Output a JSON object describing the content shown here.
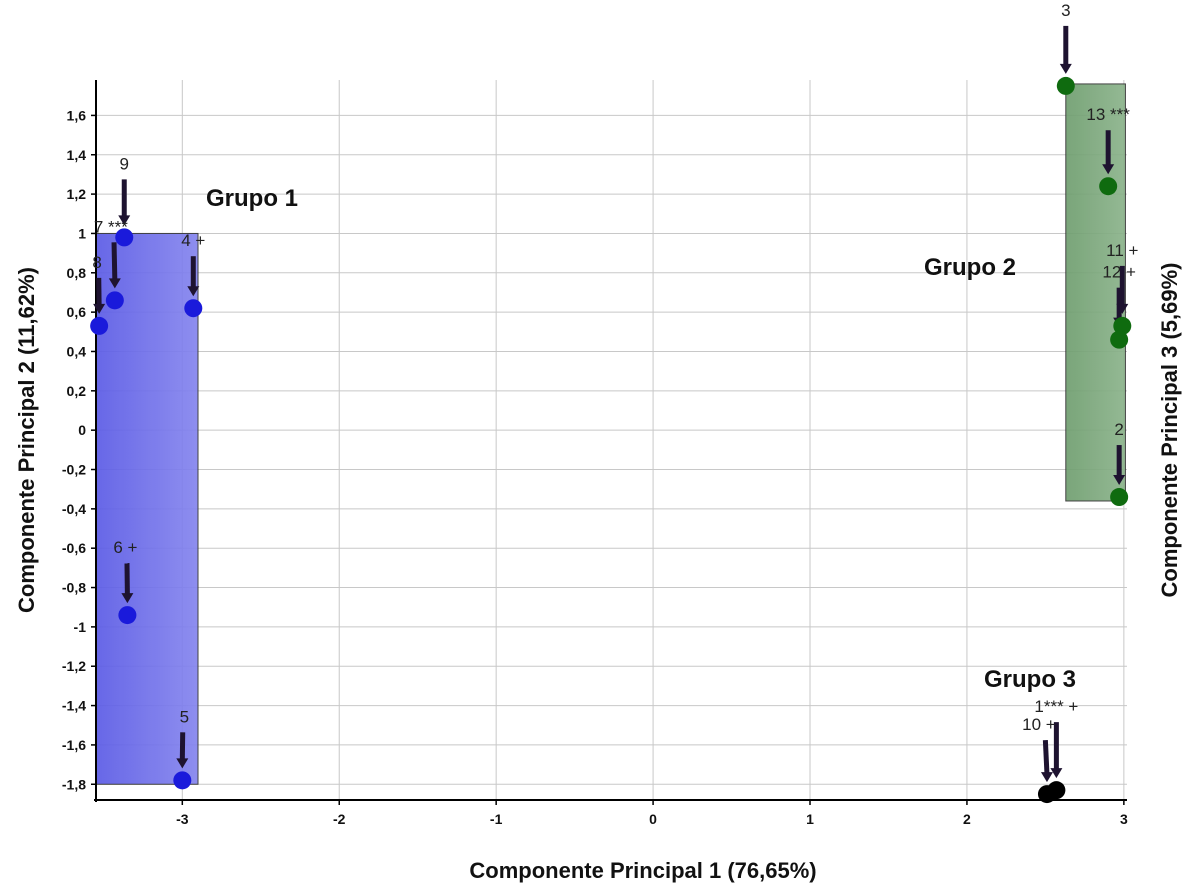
{
  "chart_data": {
    "type": "scatter",
    "xlabel": "Componente Principal 1 (76,65%)",
    "ylabel": "Componente Principal 2 (11,62%)",
    "ylabel_right": "Componente Principal  3 (5,69%)",
    "xlim": [
      -3.55,
      3.02
    ],
    "ylim": [
      -1.88,
      1.78
    ],
    "x_ticks": [
      -3,
      -2,
      -1,
      0,
      1,
      2,
      3
    ],
    "y_ticks": [
      -1.8,
      -1.6,
      -1.4,
      -1.2,
      -1,
      -0.8,
      -0.6,
      -0.4,
      -0.2,
      0,
      0.2,
      0.4,
      0.6,
      0.8,
      1,
      1.2,
      1.4,
      1.6
    ],
    "x_tick_labels": [
      "-3",
      "-2",
      "-1",
      "0",
      "1",
      "2",
      "3"
    ],
    "y_tick_labels": [
      "-1,8",
      "-1,6",
      "-1,4",
      "-1,2",
      "-1",
      "-0,8",
      "-0,6",
      "-0,4",
      "-0,2",
      "0",
      "0,2",
      "0,4",
      "0,6",
      "0,8",
      "1",
      "1,2",
      "1,4",
      "1,6"
    ],
    "grid": true,
    "groups": [
      {
        "name": "Grupo 1",
        "color": "#1a1adb",
        "fill": "#6e6ee8",
        "box": {
          "x0": -3.55,
          "x1": -2.9,
          "y0": -1.8,
          "y1": 1.0
        }
      },
      {
        "name": "Grupo 2",
        "color": "#0f6b0f",
        "fill": "#7aa57a",
        "box": {
          "x0": 2.63,
          "x1": 3.01,
          "y0": -0.36,
          "y1": 1.76
        }
      },
      {
        "name": "Grupo 3",
        "color": "#000000",
        "fill": "none",
        "box": null
      }
    ],
    "points": [
      {
        "label": "9",
        "x": -3.37,
        "y": 0.98,
        "group": 0
      },
      {
        "label": "7 ***",
        "x": -3.43,
        "y": 0.66,
        "group": 0
      },
      {
        "label": "8",
        "x": -3.53,
        "y": 0.53,
        "group": 0
      },
      {
        "label": "4 +",
        "x": -2.93,
        "y": 0.62,
        "group": 0
      },
      {
        "label": "6 +",
        "x": -3.35,
        "y": -0.94,
        "group": 0
      },
      {
        "label": "5",
        "x": -3.0,
        "y": -1.78,
        "group": 0
      },
      {
        "label": "3",
        "x": 2.63,
        "y": 1.75,
        "group": 1
      },
      {
        "label": "13 ***",
        "x": 2.9,
        "y": 1.24,
        "group": 1
      },
      {
        "label": "11 +",
        "x": 2.99,
        "y": 0.53,
        "group": 1
      },
      {
        "label": "12 +",
        "x": 2.97,
        "y": 0.46,
        "group": 1
      },
      {
        "label": "2",
        "x": 2.97,
        "y": -0.34,
        "group": 1
      },
      {
        "label": "1*** +",
        "x": 2.57,
        "y": -1.83,
        "group": 2
      },
      {
        "label": "10 +",
        "x": 2.51,
        "y": -1.85,
        "group": 2
      }
    ]
  }
}
